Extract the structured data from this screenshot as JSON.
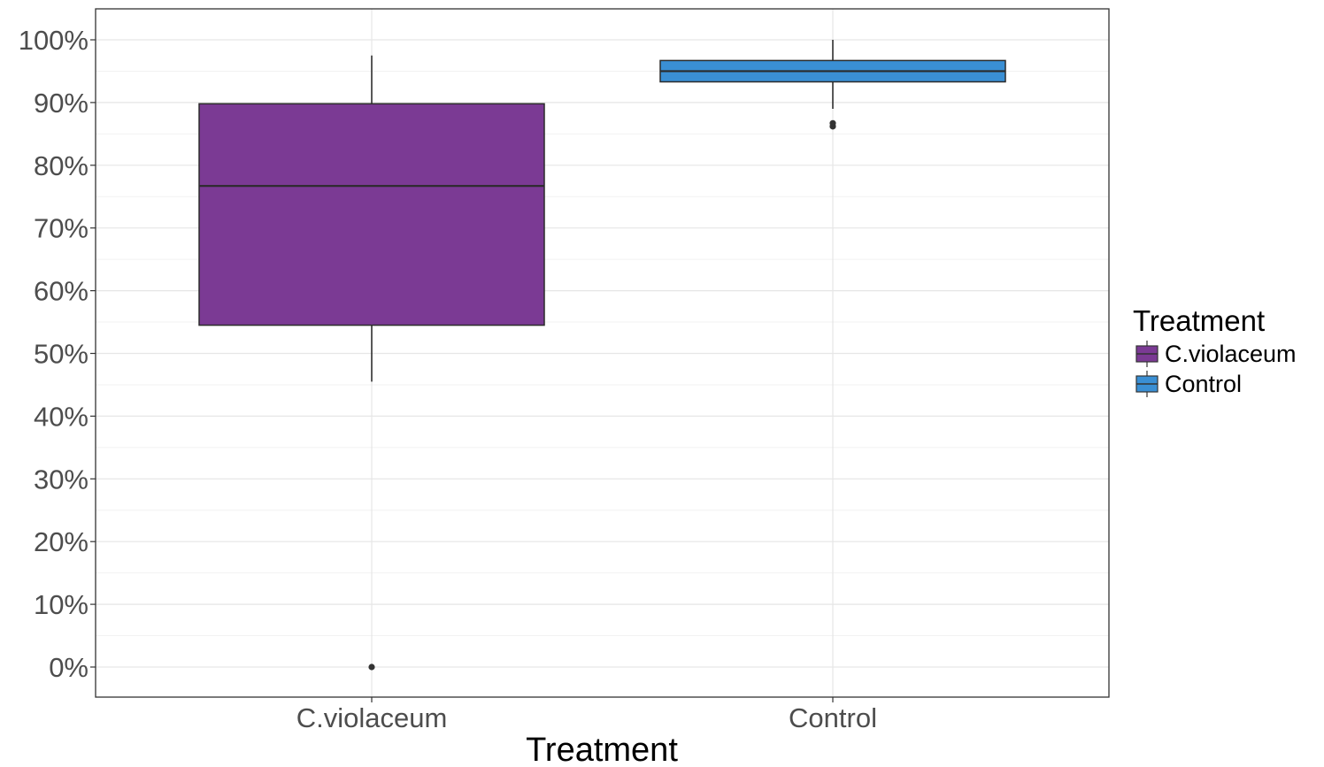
{
  "chart_data": {
    "type": "boxplot",
    "title": "",
    "xlabel": "Treatment",
    "ylabel": "",
    "ylim": [
      -0.05,
      1.05
    ],
    "y_ticks": [
      0,
      0.1,
      0.2,
      0.3,
      0.4,
      0.5,
      0.6,
      0.7,
      0.8,
      0.9,
      1.0
    ],
    "y_tick_labels": [
      "0%",
      "10%",
      "20%",
      "30%",
      "40%",
      "50%",
      "60%",
      "70%",
      "80%",
      "90%",
      "100%"
    ],
    "grid": true,
    "legend_position": "right",
    "legend_title": "Treatment",
    "categories": [
      "C.violaceum",
      "Control"
    ],
    "series": [
      {
        "name": "C.violaceum",
        "color": "#7b3a94",
        "whisker_low": 0.455,
        "q1": 0.545,
        "median": 0.767,
        "q3": 0.898,
        "whisker_high": 0.975,
        "outliers": [
          0.0
        ]
      },
      {
        "name": "Control",
        "color": "#3a8fd4",
        "whisker_low": 0.89,
        "q1": 0.933,
        "median": 0.95,
        "q3": 0.967,
        "whisker_high": 1.0,
        "outliers": [
          0.862,
          0.867
        ]
      }
    ]
  }
}
